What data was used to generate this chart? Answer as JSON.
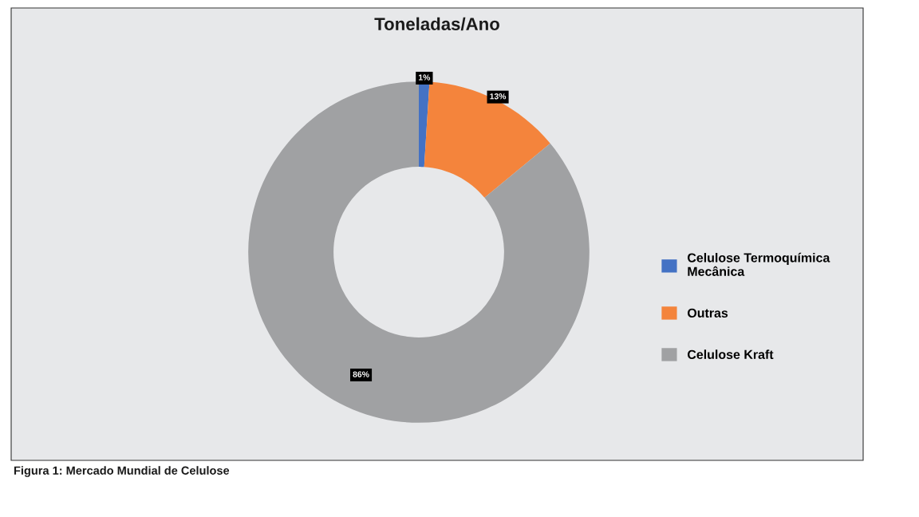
{
  "chart_data": {
    "type": "donut",
    "title": "Toneladas/Ano",
    "categories": [
      "Celulose Termoquímica Mecânica",
      "Outras",
      "Celulose Kraft"
    ],
    "values": [
      1,
      13,
      86
    ],
    "colors": [
      "#4472c4",
      "#f4843c",
      "#a0a1a3"
    ],
    "value_labels": [
      "1%",
      "13%",
      "86%"
    ],
    "legend": "right",
    "annotations": [
      "Figura 1: Mercado Mundial de Celulose"
    ]
  }
}
